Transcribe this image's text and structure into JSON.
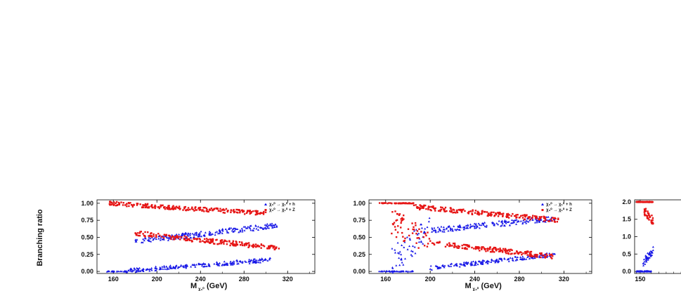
{
  "figure": {
    "ylabel": "Branching ratio"
  },
  "chart_data": [
    {
      "type": "scatter",
      "xlabel_main": "M",
      "xlabel_sub": "χ₃⁰",
      "xlabel_unit": "(GeV)",
      "ylabel": "Branching ratio",
      "xlim": [
        145,
        345
      ],
      "ylim": [
        -0.03,
        1.05
      ],
      "xticks": [
        160,
        200,
        240,
        280,
        320
      ],
      "yticks": [
        0.0,
        0.25,
        0.5,
        0.75,
        1.0
      ],
      "ytick_labels": [
        "0.00",
        "0.25",
        "0.50",
        "0.75",
        "1.00"
      ],
      "legend_position": "top-right",
      "series": [
        {
          "name": "χ₃⁰ → χ₁⁰ + h",
          "color": "#1515e6",
          "marker": "triangle",
          "bands": [
            {
              "xmin": 154,
              "xmax": 172,
              "y_start": 0.0,
              "y_end": 0.0,
              "spread": 0.005
            },
            {
              "xmin": 172,
              "xmax": 305,
              "y_start": 0.01,
              "y_end": 0.17,
              "spread": 0.03
            },
            {
              "xmin": 180,
              "xmax": 312,
              "y_start": 0.44,
              "y_end": 0.68,
              "spread": 0.04
            }
          ]
        },
        {
          "name": "χ₃⁰ → χ₁⁰ + Z",
          "color": "#e61515",
          "marker": "square",
          "bands": [
            {
              "xmin": 154,
              "xmax": 300,
              "y_start": 1.0,
              "y_end": 0.85,
              "spread": 0.03
            },
            {
              "xmin": 180,
              "xmax": 312,
              "y_start": 0.56,
              "y_end": 0.34,
              "spread": 0.035
            }
          ]
        }
      ]
    },
    {
      "type": "scatter",
      "xlabel_main": "M",
      "xlabel_sub": "χ₃⁰",
      "xlabel_unit": "(GeV)",
      "ylabel": "",
      "xlim": [
        145,
        345
      ],
      "ylim": [
        -0.03,
        1.05
      ],
      "xticks": [
        160,
        200,
        240,
        280,
        320
      ],
      "yticks": [
        0.0,
        0.25,
        0.5,
        0.75,
        1.0
      ],
      "ytick_labels": [
        "0.00",
        "0.25",
        "0.50",
        "0.75",
        "1.00"
      ],
      "legend_position": "top-right",
      "series": [
        {
          "name": "χ₃⁰ → χ₁⁰ + h",
          "color": "#1515e6",
          "marker": "triangle",
          "bands": [
            {
              "xmin": 154,
              "xmax": 185,
              "y_start": 0.0,
              "y_end": 0.0,
              "spread": 0.005
            },
            {
              "xmin": 165,
              "xmax": 200,
              "y_start": 0.15,
              "y_end": 0.6,
              "spread": 0.2
            },
            {
              "xmin": 200,
              "xmax": 312,
              "y_start": 0.6,
              "y_end": 0.78,
              "spread": 0.04
            },
            {
              "xmin": 200,
              "xmax": 312,
              "y_start": 0.05,
              "y_end": 0.25,
              "spread": 0.03
            }
          ]
        },
        {
          "name": "χ₃⁰ → χ₁⁰ + Z",
          "color": "#e61515",
          "marker": "square",
          "bands": [
            {
              "xmin": 154,
              "xmax": 185,
              "y_start": 1.0,
              "y_end": 1.0,
              "spread": 0.004
            },
            {
              "xmin": 165,
              "xmax": 200,
              "y_start": 0.75,
              "y_end": 0.4,
              "spread": 0.2
            },
            {
              "xmin": 185,
              "xmax": 315,
              "y_start": 0.95,
              "y_end": 0.75,
              "spread": 0.035
            },
            {
              "xmin": 200,
              "xmax": 310,
              "y_start": 0.42,
              "y_end": 0.22,
              "spread": 0.035
            }
          ]
        }
      ]
    },
    {
      "type": "scatter",
      "xlabel_main": "",
      "xlabel_sub": "",
      "xlabel_unit": "",
      "ylabel": "",
      "xlim": [
        135,
        400
      ],
      "ylim": [
        -0.06,
        2.06
      ],
      "xticks": [
        150
      ],
      "yticks": [
        0.0,
        0.5,
        1.0,
        1.5,
        2.0
      ],
      "ytick_labels": [
        "0.0",
        "0.5",
        "1.0",
        "1.5",
        "2.0"
      ],
      "legend_position": "",
      "series": [
        {
          "name": "",
          "color": "#1515e6",
          "marker": "triangle",
          "bands": [
            {
              "xmin": 140,
              "xmax": 180,
              "y_start": 0.0,
              "y_end": 0.0,
              "spread": 0.01
            },
            {
              "xmin": 158,
              "xmax": 185,
              "y_start": 0.25,
              "y_end": 0.6,
              "spread": 0.12
            }
          ]
        },
        {
          "name": "",
          "color": "#e61515",
          "marker": "square",
          "bands": [
            {
              "xmin": 140,
              "xmax": 185,
              "y_start": 2.0,
              "y_end": 2.0,
              "spread": 0.01
            },
            {
              "xmin": 160,
              "xmax": 185,
              "y_start": 1.75,
              "y_end": 1.45,
              "spread": 0.12
            }
          ]
        }
      ]
    }
  ]
}
